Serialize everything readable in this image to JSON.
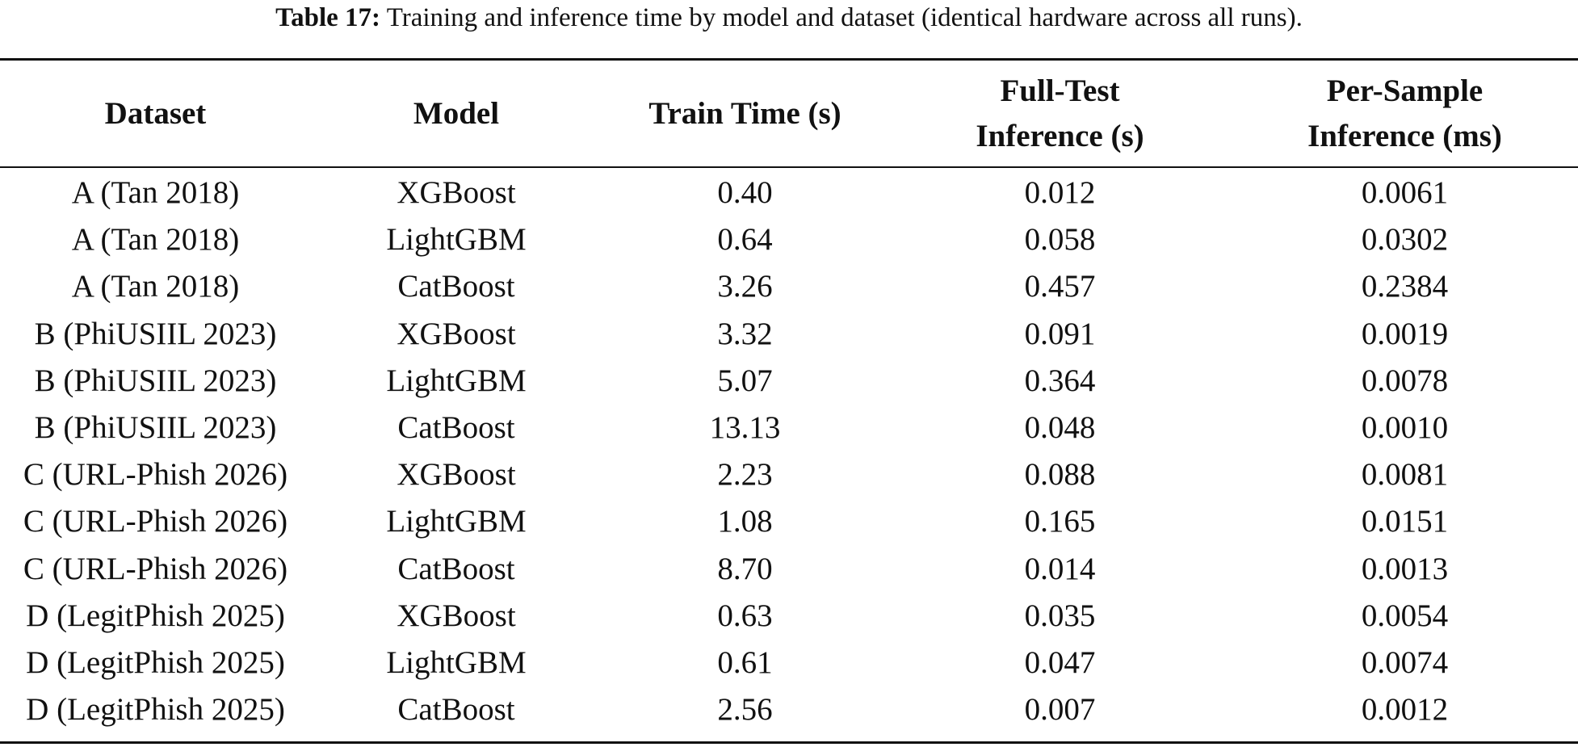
{
  "caption": {
    "label": "Table 17:",
    "text": "Training and inference time by model and dataset (identical hardware across all runs)."
  },
  "table": {
    "headers": [
      {
        "line1": "Dataset",
        "line2": ""
      },
      {
        "line1": "Model",
        "line2": ""
      },
      {
        "line1": "Train Time (s)",
        "line2": ""
      },
      {
        "line1": "Full-Test",
        "line2": "Inference (s)"
      },
      {
        "line1": "Per-Sample",
        "line2": "Inference (ms)"
      }
    ],
    "rows": [
      [
        "A (Tan 2018)",
        "XGBoost",
        "0.40",
        "0.012",
        "0.0061"
      ],
      [
        "A (Tan 2018)",
        "LightGBM",
        "0.64",
        "0.058",
        "0.0302"
      ],
      [
        "A (Tan 2018)",
        "CatBoost",
        "3.26",
        "0.457",
        "0.2384"
      ],
      [
        "B (PhiUSIIL 2023)",
        "XGBoost",
        "3.32",
        "0.091",
        "0.0019"
      ],
      [
        "B (PhiUSIIL 2023)",
        "LightGBM",
        "5.07",
        "0.364",
        "0.0078"
      ],
      [
        "B (PhiUSIIL 2023)",
        "CatBoost",
        "13.13",
        "0.048",
        "0.0010"
      ],
      [
        "C (URL-Phish 2026)",
        "XGBoost",
        "2.23",
        "0.088",
        "0.0081"
      ],
      [
        "C (URL-Phish 2026)",
        "LightGBM",
        "1.08",
        "0.165",
        "0.0151"
      ],
      [
        "C (URL-Phish 2026)",
        "CatBoost",
        "8.70",
        "0.014",
        "0.0013"
      ],
      [
        "D (LegitPhish 2025)",
        "XGBoost",
        "0.63",
        "0.035",
        "0.0054"
      ],
      [
        "D (LegitPhish 2025)",
        "LightGBM",
        "0.61",
        "0.047",
        "0.0074"
      ],
      [
        "D (LegitPhish 2025)",
        "CatBoost",
        "2.56",
        "0.007",
        "0.0012"
      ]
    ]
  }
}
